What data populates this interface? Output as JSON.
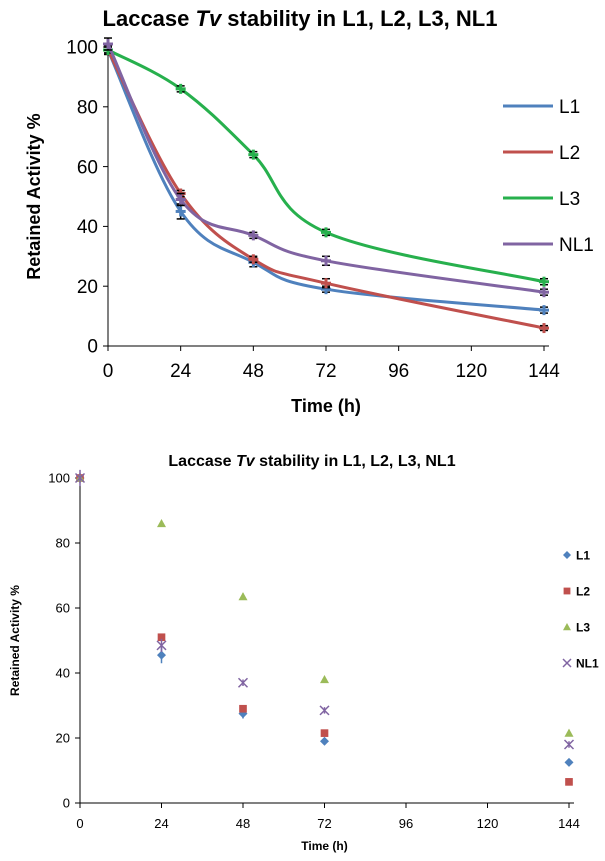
{
  "chart_data": [
    {
      "type": "line",
      "title_prefix": "Laccase ",
      "title_italic": "Tv",
      "title_suffix": " stability in L1, L2, L3, NL1",
      "xlabel": "Time (h)",
      "ylabel": "Retained Activity %",
      "x": [
        0,
        24,
        48,
        72,
        144
      ],
      "x_ticks": [
        "0",
        "24",
        "48",
        "72",
        "96",
        "120",
        "144"
      ],
      "y_ticks": [
        "0",
        "20",
        "40",
        "60",
        "80",
        "100"
      ],
      "xlim": [
        0,
        144
      ],
      "ylim": [
        0,
        100
      ],
      "grid": false,
      "legend_position": "right",
      "series": [
        {
          "name": "L1",
          "color": "#4f81bd",
          "values": [
            99,
            45,
            28,
            19,
            12
          ],
          "errors": [
            1.5,
            2.5,
            1.5,
            1,
            1
          ]
        },
        {
          "name": "L2",
          "color": "#c0504d",
          "values": [
            99,
            51,
            29,
            21,
            6
          ],
          "errors": [
            1,
            1,
            1,
            1.5,
            0.8
          ]
        },
        {
          "name": "L3",
          "color": "#27b04d",
          "values": [
            99,
            86,
            64,
            38,
            21.5
          ],
          "errors": [
            1,
            1,
            1,
            1,
            1
          ]
        },
        {
          "name": "NL1",
          "color": "#8064a2",
          "values": [
            101,
            49,
            37,
            28.5,
            18
          ],
          "errors": [
            2,
            2,
            1,
            1.5,
            1
          ]
        }
      ]
    },
    {
      "type": "scatter",
      "title_prefix": "Laccase ",
      "title_italic": "Tv",
      "title_suffix": " stability in L1, L2, L3, NL1",
      "xlabel": "Time (h)",
      "ylabel": "Retained Activity %",
      "x": [
        0,
        24,
        48,
        72,
        144
      ],
      "x_ticks": [
        "0",
        "24",
        "48",
        "72",
        "96",
        "120",
        "144"
      ],
      "y_ticks": [
        "0",
        "20",
        "40",
        "60",
        "80",
        "100"
      ],
      "xlim": [
        0,
        144
      ],
      "ylim": [
        0,
        100
      ],
      "grid": false,
      "legend_position": "right",
      "series": [
        {
          "name": "L1",
          "color": "#4f81bd",
          "marker": "diamond",
          "values": [
            100,
            45.5,
            27.5,
            19,
            12.5
          ],
          "errors": [
            1.5,
            2.5,
            1.5,
            0.8,
            0.8
          ]
        },
        {
          "name": "L2",
          "color": "#c0504d",
          "marker": "square",
          "values": [
            100,
            51,
            29,
            21.5,
            6.5
          ],
          "errors": [
            1,
            1,
            1,
            1,
            0.8
          ]
        },
        {
          "name": "L3",
          "color": "#9bbb59",
          "marker": "triangle",
          "values": [
            100,
            86,
            63.5,
            38,
            21.5
          ],
          "errors": [
            1,
            0.8,
            1,
            0.8,
            1
          ]
        },
        {
          "name": "NL1",
          "color": "#8064a2",
          "marker": "x",
          "values": [
            100,
            48.5,
            37,
            28.5,
            18
          ],
          "errors": [
            2.5,
            2,
            1,
            1,
            1
          ]
        }
      ]
    }
  ]
}
